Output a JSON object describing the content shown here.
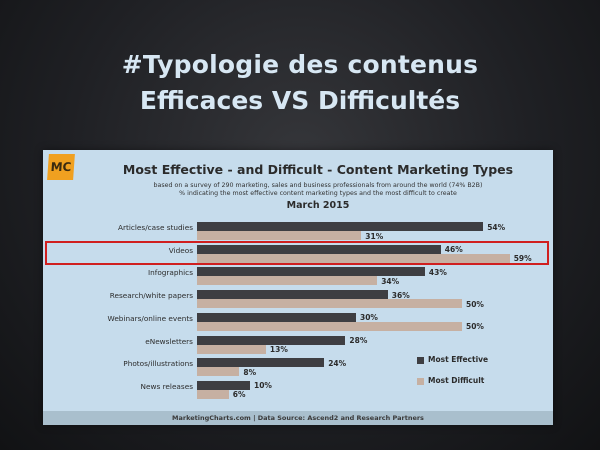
{
  "slide": {
    "title_line1": "#Typologie des contenus",
    "title_line2": "Efficaces VS Difficultés"
  },
  "logo": {
    "text": "MC",
    "color": "#f0a020"
  },
  "chart_data": {
    "type": "bar",
    "orientation": "horizontal",
    "title": "Most Effective - and Difficult - Content Marketing Types",
    "subtitle_line1": "based on a survey of 290 marketing, sales and business professionals from around the world (74% B2B)",
    "subtitle_line2": "% indicating the most effective content marketing types and the most difficult to create",
    "date": "March 2015",
    "categories": [
      "Articles/case studies",
      "Videos",
      "Infographics",
      "Research/white papers",
      "Webinars/online events",
      "eNewsletters",
      "Photos/illustrations",
      "News releases"
    ],
    "series": [
      {
        "name": "Most Effective",
        "values": [
          54,
          46,
          43,
          36,
          30,
          28,
          24,
          10
        ],
        "color": "#3e3e42"
      },
      {
        "name": "Most Difficult",
        "values": [
          31,
          59,
          34,
          50,
          50,
          13,
          8,
          6
        ],
        "color": "#c6b0a2"
      }
    ],
    "value_labels": [
      [
        "54%",
        "46%",
        "43%",
        "36%",
        "30%",
        "28%",
        "24%",
        "10%"
      ],
      [
        "31%",
        "59%",
        "34%",
        "50%",
        "50%",
        "13%",
        "8%",
        "6%"
      ]
    ],
    "highlighted_category": "Videos",
    "highlight_color": "#d01f1f",
    "legend_position": "bottom-right",
    "grid": false
  },
  "footer": {
    "text": "MarketingCharts.com | Data Source: Ascend2 and Research Partners"
  }
}
